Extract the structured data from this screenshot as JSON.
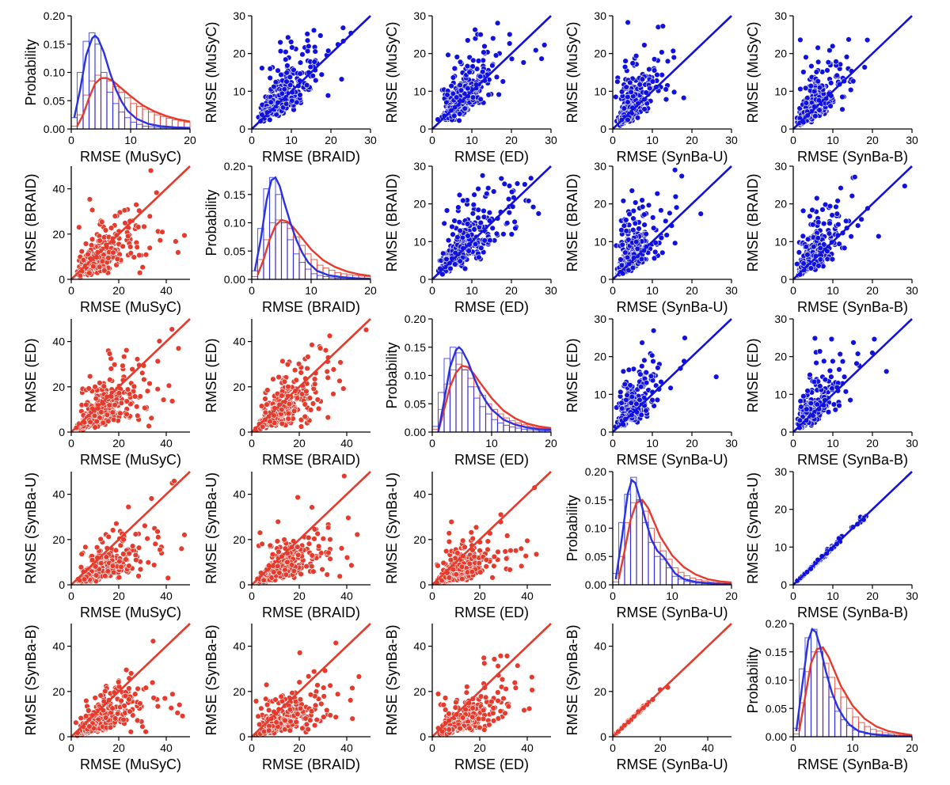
{
  "colors": {
    "cell_upper": "#1111dd",
    "cell_lower": "#e53a2c",
    "hist_blue": "#2a32e0",
    "hist_red": "#e53a2c",
    "point_edge": "#ffffff"
  },
  "chart_data": {
    "type": "scatter-matrix",
    "methods": [
      "MuSyC",
      "BRAID",
      "ED",
      "SynBa-U",
      "SynBa-B"
    ],
    "xlabels": [
      "RMSE (MuSyC)",
      "RMSE (BRAID)",
      "RMSE (ED)",
      "RMSE (SynBa-U)",
      "RMSE (SynBa-B)"
    ],
    "ylabels": [
      "RMSE (MuSyC)",
      "RMSE (BRAID)",
      "RMSE (ED)",
      "RMSE (SynBa-U)",
      "RMSE (SynBa-B)"
    ],
    "diag_ylabel": "Probability",
    "upper_range": [
      0,
      30
    ],
    "upper_ticks": [
      0,
      10,
      20,
      30
    ],
    "lower_range": [
      0,
      50
    ],
    "lower_ticks": [
      0,
      20,
      40
    ],
    "lower_xticks": [
      0,
      20,
      40
    ],
    "hist_xrange": [
      0,
      20
    ],
    "hist_xticks": [
      0,
      10,
      20
    ],
    "hist_yrange": [
      0,
      0.2
    ],
    "hist_yticks": [
      "0.00",
      "0.05",
      "0.10",
      "0.15",
      "0.20"
    ],
    "hist_bin_edges": [
      0,
      1,
      2,
      3,
      4,
      5,
      6,
      7,
      8,
      9,
      10,
      11,
      12,
      13,
      14,
      15,
      16,
      17,
      18,
      19,
      20
    ],
    "histograms": [
      {
        "method": "MuSyC",
        "blue": [
          0.02,
          0.1,
          0.155,
          0.17,
          0.15,
          0.1,
          0.065,
          0.045,
          0.03,
          0.02,
          0.012,
          0.008,
          0.005,
          0.004,
          0.003,
          0.002,
          0.002,
          0.001,
          0.001,
          0.001
        ],
        "red": [
          0.005,
          0.025,
          0.06,
          0.085,
          0.095,
          0.09,
          0.085,
          0.075,
          0.065,
          0.055,
          0.045,
          0.04,
          0.035,
          0.03,
          0.025,
          0.022,
          0.019,
          0.016,
          0.014,
          0.012
        ],
        "blue_kde_x": [
          0.5,
          1.5,
          2.5,
          3.5,
          4,
          4.5,
          5.5,
          6.5,
          7.5,
          8.5,
          9.5,
          11,
          13,
          15,
          17.5,
          20
        ],
        "blue_kde_y": [
          0.02,
          0.07,
          0.13,
          0.16,
          0.165,
          0.16,
          0.135,
          0.1,
          0.07,
          0.048,
          0.032,
          0.018,
          0.009,
          0.005,
          0.003,
          0.002
        ],
        "red_kde_x": [
          1,
          2,
          3,
          4,
          5,
          6,
          7,
          8,
          10,
          12,
          14,
          16,
          18,
          20
        ],
        "red_kde_y": [
          0.005,
          0.025,
          0.055,
          0.08,
          0.09,
          0.09,
          0.085,
          0.076,
          0.058,
          0.042,
          0.031,
          0.023,
          0.017,
          0.013
        ]
      },
      {
        "method": "BRAID",
        "blue": [
          0.015,
          0.09,
          0.16,
          0.18,
          0.15,
          0.1,
          0.07,
          0.045,
          0.03,
          0.018,
          0.01,
          0.007,
          0.005,
          0.003,
          0.002,
          0.002,
          0.001,
          0.001,
          0.001,
          0.001
        ],
        "red": [
          0.005,
          0.035,
          0.07,
          0.1,
          0.105,
          0.1,
          0.09,
          0.075,
          0.06,
          0.045,
          0.035,
          0.025,
          0.02,
          0.016,
          0.012,
          0.01,
          0.008,
          0.007,
          0.006,
          0.005
        ],
        "blue_kde_x": [
          0.5,
          1.5,
          2.5,
          3.3,
          4,
          4.7,
          5.5,
          6.5,
          7.5,
          8.5,
          9.5,
          11,
          13,
          15,
          17.5,
          20
        ],
        "blue_kde_y": [
          0.015,
          0.07,
          0.14,
          0.175,
          0.18,
          0.165,
          0.135,
          0.1,
          0.07,
          0.047,
          0.03,
          0.015,
          0.007,
          0.004,
          0.002,
          0.001
        ],
        "red_kde_x": [
          1,
          2,
          3,
          4,
          5,
          6,
          7,
          8,
          10,
          12,
          14,
          16,
          18,
          20
        ],
        "red_kde_y": [
          0.008,
          0.035,
          0.07,
          0.095,
          0.105,
          0.102,
          0.092,
          0.079,
          0.053,
          0.034,
          0.022,
          0.014,
          0.009,
          0.006
        ]
      },
      {
        "method": "ED",
        "blue": [
          0.01,
          0.07,
          0.13,
          0.15,
          0.14,
          0.11,
          0.08,
          0.06,
          0.045,
          0.032,
          0.022,
          0.016,
          0.012,
          0.009,
          0.007,
          0.005,
          0.004,
          0.003,
          0.002,
          0.002
        ],
        "red": [
          0.005,
          0.04,
          0.085,
          0.11,
          0.12,
          0.11,
          0.095,
          0.08,
          0.065,
          0.05,
          0.04,
          0.032,
          0.025,
          0.02,
          0.016,
          0.013,
          0.01,
          0.008,
          0.007,
          0.006
        ],
        "blue_kde_x": [
          1,
          2,
          3,
          4,
          4.5,
          5,
          6,
          7,
          8,
          9,
          10,
          12,
          14,
          16,
          18,
          20
        ],
        "blue_kde_y": [
          0.0,
          0.055,
          0.115,
          0.145,
          0.15,
          0.145,
          0.125,
          0.097,
          0.073,
          0.055,
          0.04,
          0.022,
          0.013,
          0.008,
          0.005,
          0.004
        ],
        "red_kde_x": [
          1,
          2,
          3,
          4,
          5,
          6,
          7,
          8,
          10,
          12,
          14,
          16,
          18,
          20
        ],
        "red_kde_y": [
          0.0,
          0.04,
          0.08,
          0.105,
          0.117,
          0.115,
          0.103,
          0.088,
          0.06,
          0.038,
          0.024,
          0.015,
          0.01,
          0.007
        ]
      },
      {
        "method": "SynBa-U",
        "blue": [
          0.02,
          0.11,
          0.16,
          0.19,
          0.15,
          0.11,
          0.075,
          0.05,
          0.045,
          0.03,
          0.015,
          0.01,
          0.006,
          0.004,
          0.003,
          0.002,
          0.002,
          0.001,
          0.001,
          0.001
        ],
        "red": [
          0.005,
          0.05,
          0.11,
          0.145,
          0.15,
          0.13,
          0.1,
          0.075,
          0.06,
          0.045,
          0.03,
          0.022,
          0.016,
          0.012,
          0.009,
          0.007,
          0.005,
          0.004,
          0.003,
          0.003
        ],
        "blue_kde_x": [
          0.5,
          1.5,
          2.5,
          3.2,
          3.8,
          4.5,
          5.5,
          6.5,
          7.5,
          8.5,
          9.5,
          10.5,
          12,
          14,
          17,
          20
        ],
        "blue_kde_y": [
          0.01,
          0.08,
          0.16,
          0.185,
          0.18,
          0.155,
          0.115,
          0.08,
          0.06,
          0.05,
          0.035,
          0.02,
          0.01,
          0.005,
          0.002,
          0.001
        ],
        "red_kde_x": [
          1,
          2,
          3,
          4,
          5,
          6,
          7,
          8,
          10,
          12,
          14,
          16,
          18,
          20
        ],
        "red_kde_y": [
          0.01,
          0.06,
          0.115,
          0.145,
          0.15,
          0.135,
          0.11,
          0.085,
          0.052,
          0.031,
          0.018,
          0.01,
          0.006,
          0.004
        ]
      },
      {
        "method": "SynBa-B",
        "blue": [
          0.015,
          0.12,
          0.175,
          0.19,
          0.15,
          0.105,
          0.07,
          0.045,
          0.03,
          0.02,
          0.012,
          0.008,
          0.005,
          0.003,
          0.002,
          0.002,
          0.001,
          0.001,
          0.001,
          0.001
        ],
        "red": [
          0.005,
          0.06,
          0.115,
          0.15,
          0.155,
          0.13,
          0.105,
          0.085,
          0.07,
          0.05,
          0.035,
          0.025,
          0.018,
          0.013,
          0.01,
          0.007,
          0.005,
          0.004,
          0.003,
          0.003
        ],
        "blue_kde_x": [
          0.5,
          1.5,
          2.5,
          3.2,
          3.8,
          4.5,
          5.5,
          6.5,
          7.5,
          8.5,
          9.5,
          11,
          13,
          15,
          17.5,
          20
        ],
        "blue_kde_y": [
          0.01,
          0.09,
          0.17,
          0.19,
          0.185,
          0.16,
          0.115,
          0.078,
          0.052,
          0.034,
          0.021,
          0.01,
          0.005,
          0.003,
          0.001,
          0.001
        ],
        "red_kde_x": [
          1,
          2,
          3,
          4,
          5,
          6,
          7,
          8,
          10,
          12,
          14,
          16,
          18,
          20
        ],
        "red_kde_y": [
          0.01,
          0.07,
          0.13,
          0.155,
          0.158,
          0.14,
          0.115,
          0.09,
          0.055,
          0.032,
          0.018,
          0.01,
          0.006,
          0.003
        ]
      }
    ]
  }
}
